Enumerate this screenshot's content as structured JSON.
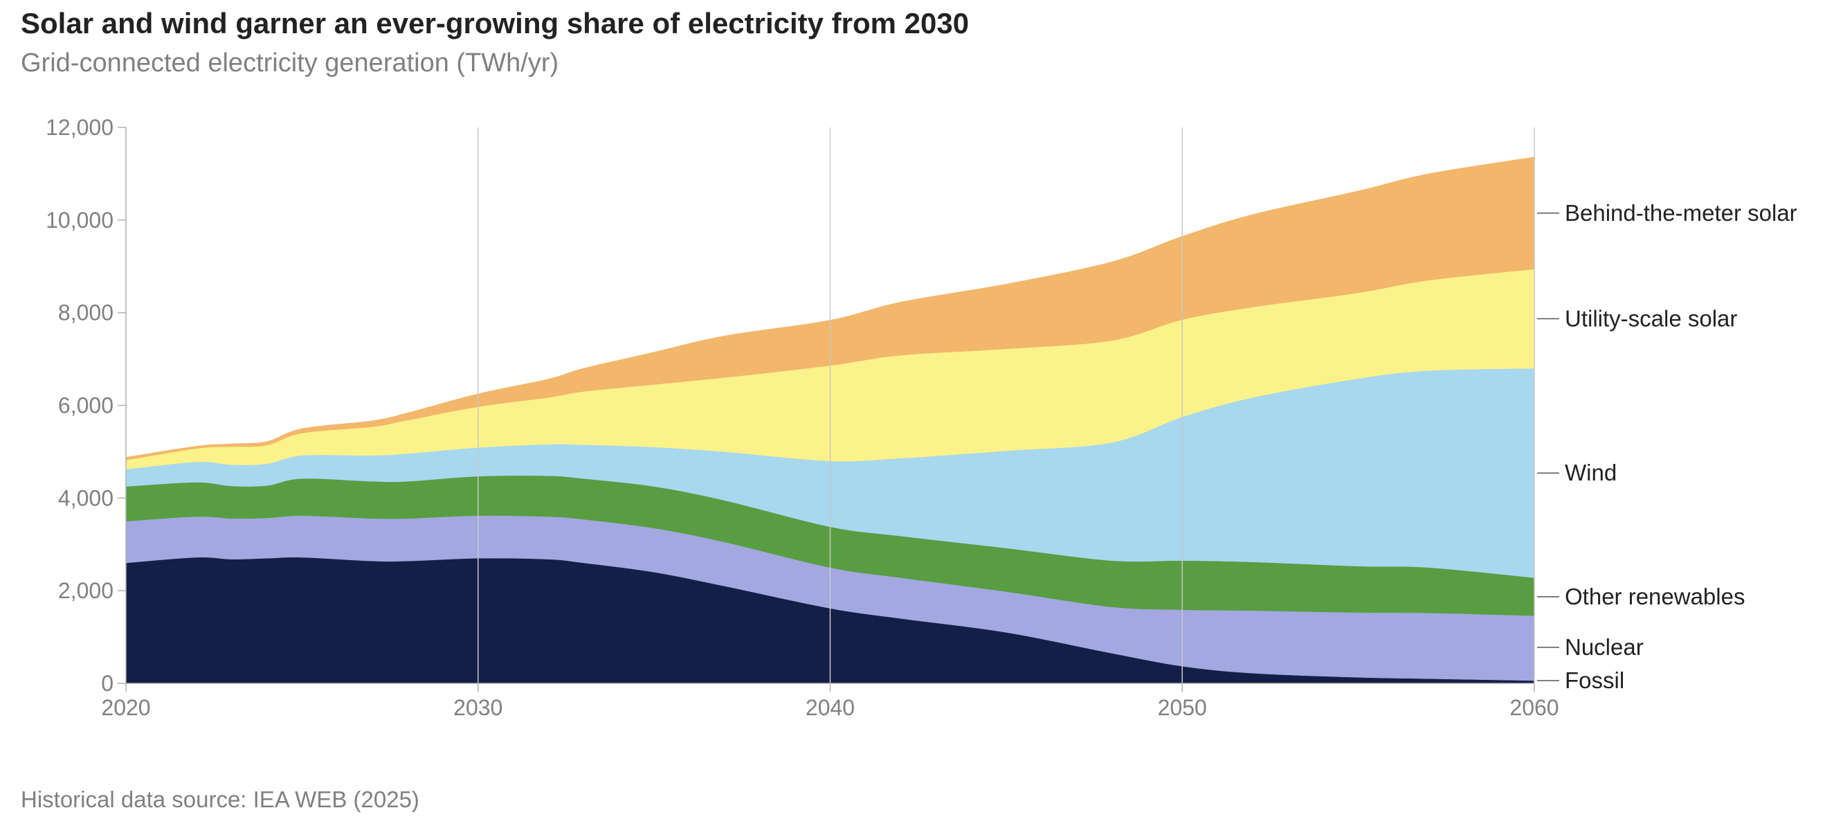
{
  "title": "Solar and wind garner an ever-growing share of electricity from 2030",
  "subtitle": "Grid-connected electricity generation (TWh/yr)",
  "source": "Historical data source: IEA WEB (2025)",
  "chart_data": {
    "type": "area",
    "stacked": true,
    "x": [
      2020,
      2022,
      2023,
      2024,
      2025,
      2027,
      2028,
      2030,
      2032,
      2033,
      2035,
      2037,
      2040,
      2042,
      2045,
      2048,
      2050,
      2052,
      2055,
      2057,
      2060
    ],
    "series": [
      {
        "name": "Fossil",
        "color": "#141f47",
        "values": [
          2600,
          2720,
          2680,
          2700,
          2720,
          2640,
          2640,
          2700,
          2680,
          2600,
          2400,
          2100,
          1620,
          1400,
          1100,
          650,
          370,
          220,
          130,
          100,
          60
        ]
      },
      {
        "name": "Nuclear",
        "color": "#a3a8e0",
        "values": [
          900,
          880,
          880,
          870,
          900,
          920,
          920,
          920,
          920,
          940,
          950,
          950,
          880,
          880,
          880,
          1000,
          1220,
          1350,
          1400,
          1420,
          1400
        ]
      },
      {
        "name": "Other renewables",
        "color": "#589d42",
        "values": [
          750,
          740,
          700,
          700,
          800,
          800,
          800,
          850,
          880,
          880,
          900,
          900,
          880,
          900,
          940,
          1000,
          1060,
          1050,
          1000,
          980,
          820
        ]
      },
      {
        "name": "Wind",
        "color": "#a7d8ee",
        "values": [
          370,
          440,
          460,
          470,
          500,
          560,
          600,
          620,
          680,
          730,
          850,
          1050,
          1420,
          1680,
          2100,
          2550,
          3100,
          3550,
          4050,
          4250,
          4520
        ]
      },
      {
        "name": "Utility-scale solar",
        "color": "#fcf28a",
        "values": [
          200,
          290,
          390,
          400,
          480,
          620,
          720,
          880,
          1010,
          1150,
          1350,
          1600,
          2060,
          2220,
          2200,
          2200,
          2100,
          1950,
          1850,
          1950,
          2140
        ]
      },
      {
        "name": "Behind-the-meter solar",
        "color": "#f2b76b",
        "values": [
          60,
          50,
          60,
          80,
          100,
          130,
          160,
          280,
          400,
          500,
          700,
          900,
          980,
          1150,
          1400,
          1700,
          1800,
          2000,
          2200,
          2300,
          2420
        ]
      }
    ],
    "legend": [
      "Behind-the-meter solar",
      "Utility-scale solar",
      "Wind",
      "Other renewables",
      "Nuclear",
      "Fossil"
    ],
    "legend_placement": "right, labels at series ends",
    "xlim": [
      2020,
      2060
    ],
    "ylim": [
      0,
      12000
    ],
    "x_ticks": [
      "2020",
      "2030",
      "2040",
      "2050",
      "2060"
    ],
    "y_ticks": [
      "0",
      "2,000",
      "4,000",
      "6,000",
      "8,000",
      "10,000",
      "12,000"
    ],
    "grid": "vertical lines at x ticks"
  }
}
